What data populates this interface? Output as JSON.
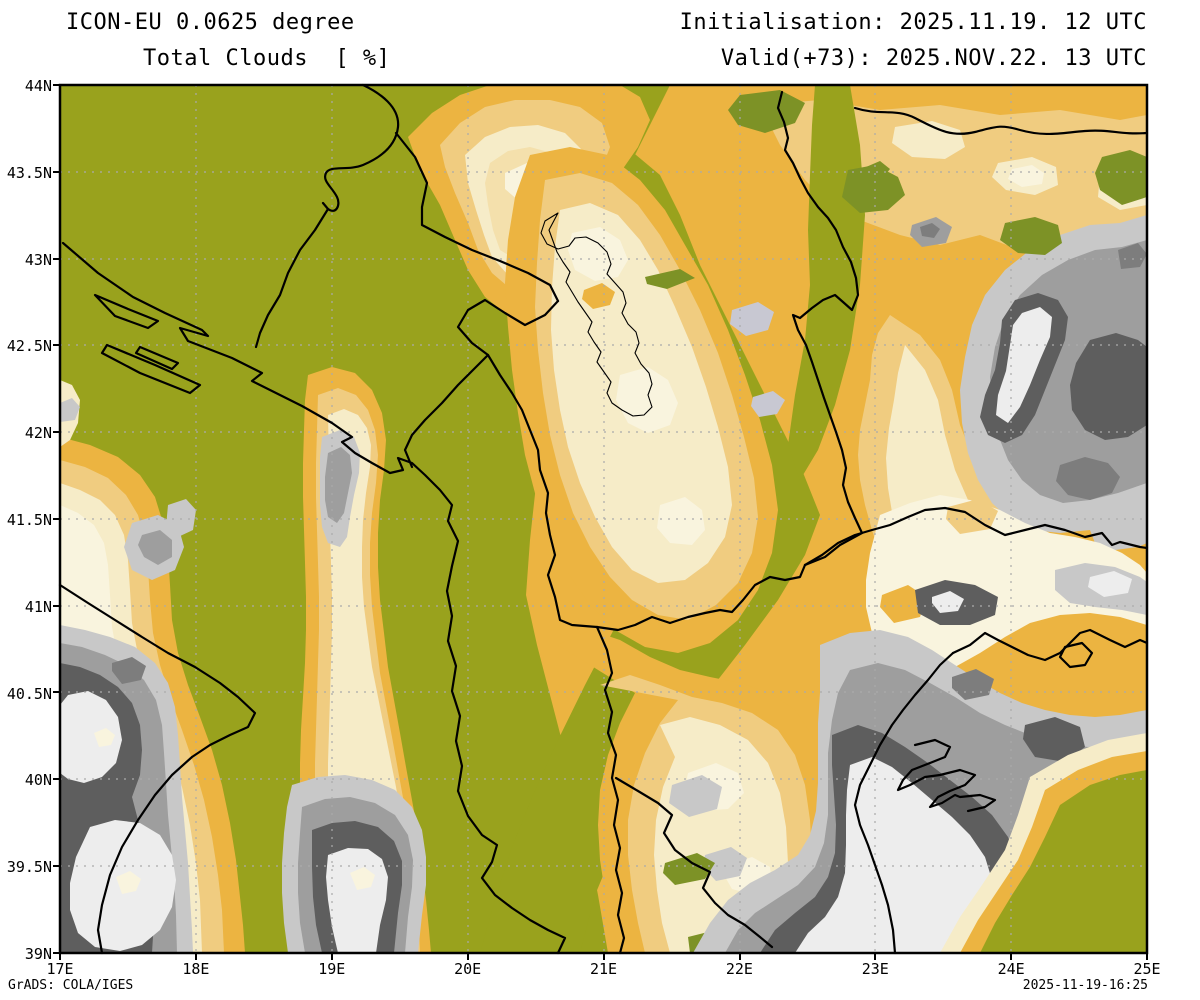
{
  "header": {
    "model_title": "ICON-EU 0.0625 degree",
    "field_title": "Total Clouds  [ %]",
    "init_label": "Initialisation: 2025.11.19. 12 UTC",
    "valid_label": "Valid(+73): 2025.NOV.22. 13 UTC"
  },
  "footer": {
    "credit": "GrADS: COLA/IGES",
    "timestamp": "2025-11-19-16:25"
  },
  "axes": {
    "lat": [
      "44N",
      "43.5N",
      "43N",
      "42.5N",
      "42N",
      "41.5N",
      "41N",
      "40.5N",
      "40N",
      "39.5N",
      "39N"
    ],
    "lon": [
      "17E",
      "18E",
      "19E",
      "20E",
      "21E",
      "22E",
      "23E",
      "24E",
      "25E"
    ]
  },
  "chart_data": {
    "type": "heatmap",
    "title": "Total Clouds  [ %]",
    "model": "ICON-EU 0.0625 degree",
    "initialisation": "2025.11.19. 12 UTC",
    "valid": "2025.NOV.22. 13 UTC",
    "lead_hours": 73,
    "unit": "%",
    "x_axis": {
      "ticks": [
        "17E",
        "18E",
        "19E",
        "20E",
        "21E",
        "22E",
        "23E",
        "24E",
        "25E"
      ],
      "range_deg_east": [
        17,
        25
      ]
    },
    "y_axis": {
      "ticks": [
        "44N",
        "43.5N",
        "43N",
        "42.5N",
        "42N",
        "41.5N",
        "41N",
        "40.5N",
        "40N",
        "39.5N",
        "39N"
      ],
      "range_deg_north": [
        39,
        44
      ]
    },
    "grid": {
      "style": "dashed",
      "lon_step_deg": 1,
      "lat_step_deg": 0.5
    },
    "legend_position": "none",
    "palette_low_to_high_cloud": [
      "#7d9226",
      "#99a21d",
      "#ecb441",
      "#f0cc80",
      "#f4e0ac",
      "#f6ecc8",
      "#f9f4de",
      "#c8c8c8",
      "#9e9e9e",
      "#7d7d7d",
      "#5e5e5e",
      "#ededed"
    ],
    "depicted_features": [
      "clear olive area over Bosnia, Montenegro and central band toward Macedonia",
      "orange-cream cloud band along the top from 21E to 25E near 43.5-44N",
      "cream cloud field over Kosovo and southern Serbia",
      "two orange-cream cloud bands with grey cores on the left near 18E and 19.3E",
      "heavy grey/white overcast over the Adriatic bottom-left corner",
      "large grey mass with white 95-100% cores over Bulgaria and the Aegean, right side",
      "clear olive patch in the bottom-right corner near 24.5E 39.5N"
    ],
    "annotations": [
      "GrADS: COLA/IGES",
      "2025-11-19-16:25"
    ]
  }
}
